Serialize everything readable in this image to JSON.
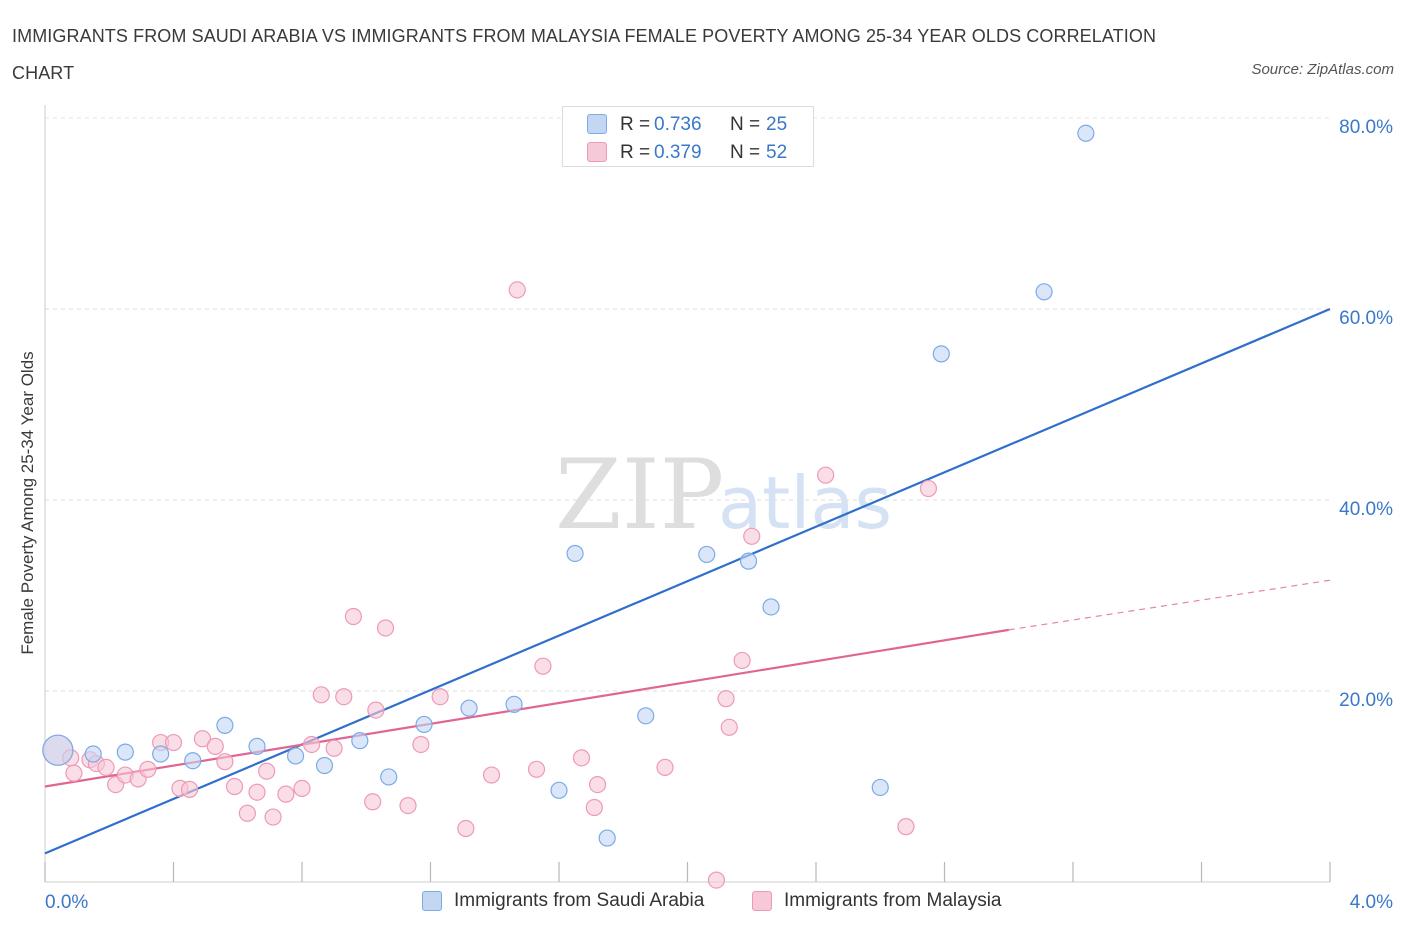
{
  "chart_data": {
    "type": "scatter",
    "title": "IMMIGRANTS FROM SAUDI ARABIA VS IMMIGRANTS FROM MALAYSIA FEMALE POVERTY AMONG 25-34 YEAR OLDS CORRELATION CHART",
    "source": "Source: ZipAtlas.com",
    "xlabel": "",
    "ylabel": "Female Poverty Among 25-34 Year Olds",
    "xlim": [
      0,
      4
    ],
    "ylim": [
      0,
      80
    ],
    "x_tick_labels": {
      "left": "0.0%",
      "right": "4.0%"
    },
    "y_ticks": [
      {
        "value": 20,
        "label": "20.0%"
      },
      {
        "value": 40,
        "label": "40.0%"
      },
      {
        "value": 60,
        "label": "60.0%"
      },
      {
        "value": 80,
        "label": "80.0%"
      }
    ],
    "watermark": {
      "part1": "ZIP",
      "part2": "atlas"
    },
    "series": [
      {
        "name": "Immigrants from Saudi Arabia",
        "color": "#7aabe8",
        "fill": "#c3d7f3",
        "line_color": "#2f6fcc",
        "R": "0.736",
        "N": "25",
        "trend": {
          "x0": 0.0,
          "y0": 3.0,
          "x1": 4.0,
          "y1": 60.0
        },
        "points": [
          [
            0.04,
            13.8
          ],
          [
            0.15,
            13.4
          ],
          [
            0.25,
            13.6
          ],
          [
            0.36,
            13.4
          ],
          [
            0.46,
            12.7
          ],
          [
            0.56,
            16.4
          ],
          [
            0.66,
            14.2
          ],
          [
            0.78,
            13.2
          ],
          [
            0.87,
            12.2
          ],
          [
            0.98,
            14.8
          ],
          [
            1.07,
            11.0
          ],
          [
            1.18,
            16.5
          ],
          [
            1.32,
            18.2
          ],
          [
            1.46,
            18.6
          ],
          [
            1.6,
            9.6
          ],
          [
            1.65,
            34.4
          ],
          [
            1.75,
            4.6
          ],
          [
            1.87,
            17.4
          ],
          [
            2.06,
            34.3
          ],
          [
            2.19,
            33.6
          ],
          [
            2.26,
            28.8
          ],
          [
            2.6,
            9.9
          ],
          [
            2.79,
            55.3
          ],
          [
            3.11,
            61.8
          ],
          [
            3.24,
            78.4
          ]
        ]
      },
      {
        "name": "Immigrants from Malaysia",
        "color": "#ee9ab5",
        "fill": "#f7c8d7",
        "line_color": "#e06692",
        "R": "0.379",
        "N": "52",
        "trend": {
          "x0": 0.0,
          "y0": 10.0,
          "x1": 3.0,
          "y1": 26.4
        },
        "trend_dashed": {
          "x0": 3.0,
          "y0": 26.4,
          "x1": 4.0,
          "y1": 31.6
        },
        "points": [
          [
            0.04,
            13.8
          ],
          [
            0.08,
            13.0
          ],
          [
            0.09,
            11.4
          ],
          [
            0.14,
            12.8
          ],
          [
            0.16,
            12.4
          ],
          [
            0.19,
            12.0
          ],
          [
            0.22,
            10.2
          ],
          [
            0.25,
            11.2
          ],
          [
            0.29,
            10.8
          ],
          [
            0.32,
            11.8
          ],
          [
            0.36,
            14.6
          ],
          [
            0.4,
            14.6
          ],
          [
            0.42,
            9.8
          ],
          [
            0.45,
            9.7
          ],
          [
            0.49,
            15.0
          ],
          [
            0.53,
            14.2
          ],
          [
            0.56,
            12.6
          ],
          [
            0.59,
            10.0
          ],
          [
            0.63,
            7.2
          ],
          [
            0.66,
            9.4
          ],
          [
            0.69,
            11.6
          ],
          [
            0.71,
            6.8
          ],
          [
            0.75,
            9.2
          ],
          [
            0.8,
            9.8
          ],
          [
            0.83,
            14.4
          ],
          [
            0.86,
            19.6
          ],
          [
            0.9,
            14.0
          ],
          [
            0.93,
            19.4
          ],
          [
            0.96,
            27.8
          ],
          [
            1.02,
            8.4
          ],
          [
            1.03,
            18.0
          ],
          [
            1.06,
            26.6
          ],
          [
            1.13,
            8.0
          ],
          [
            1.17,
            14.4
          ],
          [
            1.23,
            19.4
          ],
          [
            1.31,
            5.6
          ],
          [
            1.39,
            11.2
          ],
          [
            1.47,
            62.0
          ],
          [
            1.53,
            11.8
          ],
          [
            1.55,
            22.6
          ],
          [
            1.67,
            13.0
          ],
          [
            1.71,
            7.8
          ],
          [
            1.72,
            10.2
          ],
          [
            1.93,
            12.0
          ],
          [
            2.09,
            0.2
          ],
          [
            2.12,
            19.2
          ],
          [
            2.13,
            16.2
          ],
          [
            2.17,
            23.2
          ],
          [
            2.2,
            36.2
          ],
          [
            2.43,
            42.6
          ],
          [
            2.68,
            5.8
          ],
          [
            2.75,
            41.2
          ]
        ]
      }
    ]
  }
}
